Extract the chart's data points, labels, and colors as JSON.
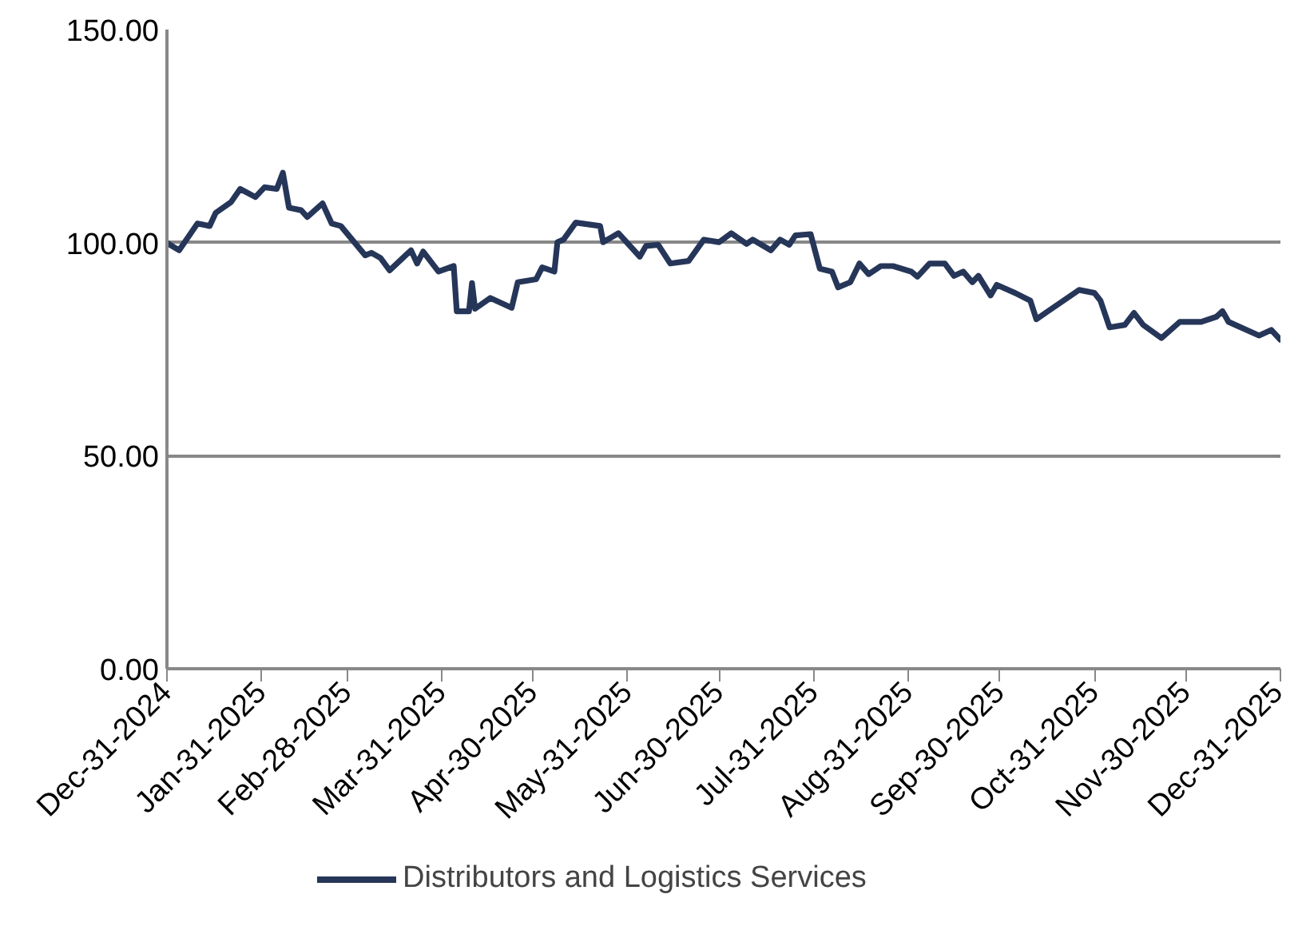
{
  "chart_data": {
    "type": "line",
    "x": [
      "2024-12-31",
      "2025-01-01",
      "2025-01-04",
      "2025-01-10",
      "2025-01-14",
      "2025-01-16",
      "2025-01-21",
      "2025-01-24",
      "2025-01-29",
      "2025-02-01",
      "2025-02-05",
      "2025-02-07",
      "2025-02-09",
      "2025-02-13",
      "2025-02-15",
      "2025-02-20",
      "2025-02-23",
      "2025-02-26",
      "2025-03-06",
      "2025-03-08",
      "2025-03-11",
      "2025-03-14",
      "2025-03-21",
      "2025-03-23",
      "2025-03-25",
      "2025-03-30",
      "2025-04-04",
      "2025-04-05",
      "2025-04-09",
      "2025-04-10",
      "2025-04-11",
      "2025-04-16",
      "2025-04-20",
      "2025-04-23",
      "2025-04-25",
      "2025-05-01",
      "2025-05-03",
      "2025-05-07",
      "2025-05-08",
      "2025-05-10",
      "2025-05-14",
      "2025-05-22",
      "2025-05-23",
      "2025-05-28",
      "2025-06-04",
      "2025-06-06",
      "2025-06-10",
      "2025-06-14",
      "2025-06-20",
      "2025-06-25",
      "2025-06-30",
      "2025-07-04",
      "2025-07-09",
      "2025-07-11",
      "2025-07-17",
      "2025-07-20",
      "2025-07-23",
      "2025-07-25",
      "2025-07-30",
      "2025-08-02",
      "2025-08-06",
      "2025-08-08",
      "2025-08-12",
      "2025-08-15",
      "2025-08-18",
      "2025-08-22",
      "2025-08-26",
      "2025-09-01",
      "2025-09-03",
      "2025-09-07",
      "2025-09-12",
      "2025-09-15",
      "2025-09-18",
      "2025-09-21",
      "2025-09-23",
      "2025-09-27",
      "2025-09-29",
      "2025-10-05",
      "2025-10-10",
      "2025-10-12",
      "2025-10-15",
      "2025-10-26",
      "2025-10-31",
      "2025-11-02",
      "2025-11-05",
      "2025-11-10",
      "2025-11-13",
      "2025-11-16",
      "2025-11-22",
      "2025-11-28",
      "2025-12-05",
      "2025-12-10",
      "2025-12-12",
      "2025-12-14",
      "2025-12-24",
      "2025-12-28",
      "2025-12-31"
    ],
    "series": [
      {
        "name": "Distributors and Logistics Services",
        "color": "#263659",
        "values": [
          100,
          99.5,
          98.2,
          104.5,
          103.9,
          107,
          109.5,
          112.6,
          110.7,
          113,
          112.6,
          116.4,
          108.2,
          107.6,
          106,
          109.2,
          104.5,
          103.9,
          97,
          97.6,
          96.4,
          93.5,
          98.2,
          95.1,
          97.9,
          93.2,
          94.5,
          83.9,
          83.9,
          90.5,
          84.5,
          87,
          85.7,
          84.7,
          90.7,
          91.4,
          94.2,
          93.2,
          100.1,
          100.7,
          104.7,
          103.9,
          100.1,
          102.2,
          96.7,
          99.2,
          99.5,
          95.1,
          95.7,
          100.7,
          100.1,
          102.2,
          99.7,
          100.7,
          98.2,
          100.7,
          99.5,
          101.7,
          102,
          93.9,
          93.2,
          89.5,
          90.7,
          95.1,
          92.6,
          94.5,
          94.5,
          93.2,
          92,
          95.1,
          95.1,
          92.2,
          93.2,
          90.7,
          92.2,
          87.6,
          90.1,
          88.2,
          86.4,
          82,
          83.5,
          88.9,
          88.2,
          86.4,
          80.1,
          80.7,
          83.5,
          80.7,
          77.6,
          81.4,
          81.4,
          82.6,
          83.9,
          81.4,
          78.2,
          79.5,
          77.2
        ]
      }
    ],
    "xlim": [
      "2024-12-31",
      "2025-12-31"
    ],
    "xticks": [
      {
        "value": "2024-12-31",
        "label": "Dec-31-2024"
      },
      {
        "value": "2025-01-31",
        "label": "Jan-31-2025"
      },
      {
        "value": "2025-02-28",
        "label": "Feb-28-2025"
      },
      {
        "value": "2025-03-31",
        "label": "Mar-31-2025"
      },
      {
        "value": "2025-04-30",
        "label": "Apr-30-2025"
      },
      {
        "value": "2025-05-31",
        "label": "May-31-2025"
      },
      {
        "value": "2025-06-30",
        "label": "Jun-30-2025"
      },
      {
        "value": "2025-07-31",
        "label": "Jul-31-2025"
      },
      {
        "value": "2025-08-31",
        "label": "Aug-31-2025"
      },
      {
        "value": "2025-09-30",
        "label": "Sep-30-2025"
      },
      {
        "value": "2025-10-31",
        "label": "Oct-31-2025"
      },
      {
        "value": "2025-11-30",
        "label": "Nov-30-2025"
      },
      {
        "value": "2025-12-31",
        "label": "Dec-31-2025"
      }
    ],
    "ylim": [
      0,
      150
    ],
    "yticks": [
      {
        "value": 0,
        "label": "0.00"
      },
      {
        "value": 50,
        "label": "50.00"
      },
      {
        "value": 100,
        "label": "100.00"
      },
      {
        "value": 150,
        "label": "150.00"
      }
    ],
    "grid": "y",
    "legend": "bottom",
    "marker": "none",
    "line_style": "solid"
  }
}
